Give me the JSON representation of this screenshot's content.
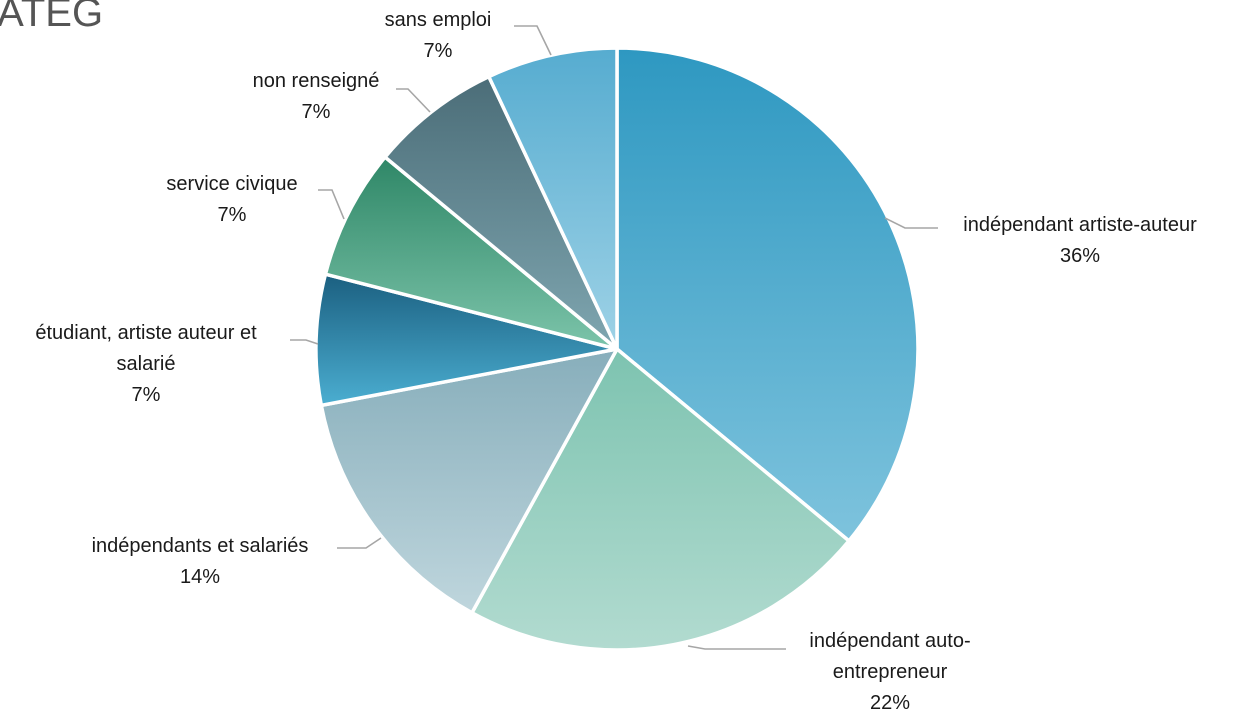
{
  "header": {
    "title_fragment": "IATEG"
  },
  "chart_data": {
    "type": "pie",
    "title": "",
    "slices": [
      {
        "label": [
          "indépendant artiste-auteur"
        ],
        "percent_label": "36%",
        "value": 36,
        "colors": [
          "#2e98c1",
          "#7ec3dd"
        ]
      },
      {
        "label": [
          "indépendant auto-",
          "entrepreneur"
        ],
        "percent_label": "22%",
        "value": 22,
        "colors": [
          "#7dc3b0",
          "#b2dbd0"
        ]
      },
      {
        "label": [
          "indépendants et salariés"
        ],
        "percent_label": "14%",
        "value": 14,
        "colors": [
          "#87aebb",
          "#bfd6dd"
        ]
      },
      {
        "label": [
          "étudiant, artiste auteur et",
          "salarié"
        ],
        "percent_label": "7%",
        "value": 7,
        "colors": [
          "#1b5f80",
          "#4baed1"
        ]
      },
      {
        "label": [
          "service civique"
        ],
        "percent_label": "7%",
        "value": 7,
        "colors": [
          "#2f8767",
          "#7cc4aa"
        ]
      },
      {
        "label": [
          "non renseigné"
        ],
        "percent_label": "7%",
        "value": 7,
        "colors": [
          "#4b6d78",
          "#7fa6b0"
        ]
      },
      {
        "label": [
          "sans emploi"
        ],
        "percent_label": "7%",
        "value": 7,
        "colors": [
          "#56acd0",
          "#9ed2e6"
        ]
      }
    ]
  }
}
